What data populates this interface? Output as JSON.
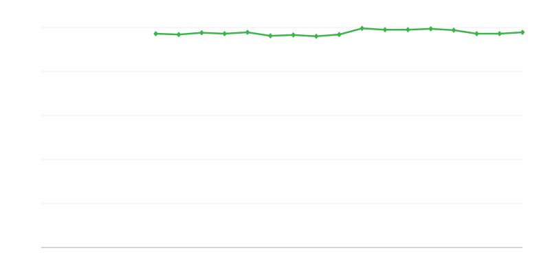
{
  "chart_data": {
    "type": "line",
    "title": "",
    "xlabel": "",
    "ylabel": "",
    "x": [
      0,
      1,
      2,
      3,
      4,
      5,
      6,
      7,
      8,
      9,
      10,
      11,
      12,
      13,
      14,
      15,
      16,
      17,
      18,
      19,
      20,
      21
    ],
    "ylim": [
      0,
      5
    ],
    "yticks": [
      0,
      1,
      2,
      3,
      4,
      5
    ],
    "grid": true,
    "series": [
      {
        "color": "#3cb44b",
        "marker": "diamond",
        "values": [
          null,
          null,
          null,
          null,
          null,
          4.86,
          4.84,
          4.88,
          4.86,
          4.89,
          4.81,
          4.83,
          4.8,
          4.84,
          4.98,
          4.95,
          4.95,
          4.97,
          4.94,
          4.86,
          4.86,
          4.89
        ]
      }
    ],
    "colors": {
      "grid": "#ebebeb",
      "axis": "#aaaaaa"
    }
  }
}
